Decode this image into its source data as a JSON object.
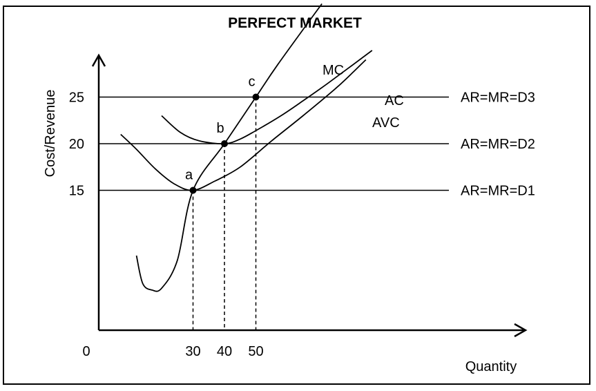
{
  "chart_data": {
    "type": "line",
    "title": "PERFECT MARKET",
    "xlabel": "Quantity",
    "ylabel": "Cost/Revenue",
    "origin_label": "0",
    "x_ticks": [
      30,
      40,
      50
    ],
    "y_ticks": [
      15,
      20,
      25
    ],
    "xlim": [
      0,
      135
    ],
    "ylim": [
      0,
      30
    ],
    "grid": false,
    "legend": "none",
    "series": [
      {
        "name": "MC",
        "points": [
          [
            12,
            8
          ],
          [
            14,
            5
          ],
          [
            17,
            4.3
          ],
          [
            20,
            4.5
          ],
          [
            25,
            7.5
          ],
          [
            30,
            15
          ],
          [
            40,
            20
          ],
          [
            50,
            25
          ],
          [
            57,
            28.5
          ],
          [
            71,
            35
          ]
        ]
      },
      {
        "name": "AC",
        "points": [
          [
            20,
            23
          ],
          [
            26,
            21.2
          ],
          [
            32,
            20.3
          ],
          [
            40,
            20
          ],
          [
            45,
            20.5
          ],
          [
            50,
            21.4
          ],
          [
            58,
            23
          ],
          [
            65,
            24.6
          ],
          [
            73,
            26.5
          ],
          [
            87,
            30
          ]
        ]
      },
      {
        "name": "AVC",
        "points": [
          [
            7,
            21
          ],
          [
            12,
            19.4
          ],
          [
            18,
            17.3
          ],
          [
            24,
            15.7
          ],
          [
            30,
            15
          ],
          [
            37,
            16
          ],
          [
            45,
            17.5
          ],
          [
            55,
            20.3
          ],
          [
            65,
            23
          ],
          [
            76,
            26.1
          ],
          [
            85,
            29
          ]
        ]
      }
    ],
    "revenue_lines": [
      {
        "name": "AR=MR=D3",
        "y": 25
      },
      {
        "name": "AR=MR=D2",
        "y": 20
      },
      {
        "name": "AR=MR=D1",
        "y": 15
      }
    ],
    "points": [
      {
        "label": "a",
        "x": 30,
        "y": 15
      },
      {
        "label": "b",
        "x": 40,
        "y": 20
      },
      {
        "label": "c",
        "x": 50,
        "y": 25
      }
    ]
  }
}
